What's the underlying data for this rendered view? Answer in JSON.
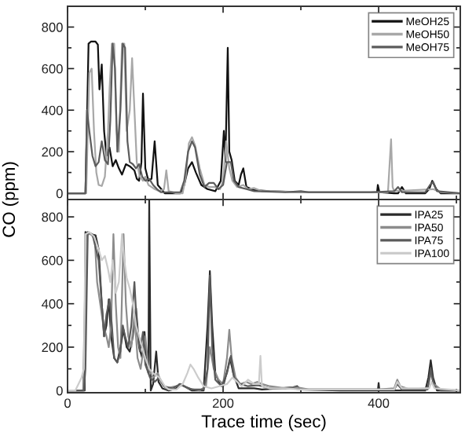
{
  "chart_data": [
    {
      "type": "line",
      "ylabel": "CO (ppm)",
      "xlim": [
        0,
        505
      ],
      "xticks": [
        0,
        {
          "value": 100,
          "label": null
        },
        200,
        {
          "value": 300,
          "label": null
        },
        400,
        {
          "value": 500,
          "label": null
        }
      ],
      "ylim": [
        -30,
        900
      ],
      "yticks": [
        0,
        {
          "value": 100,
          "label": null
        },
        200,
        {
          "value": 300,
          "label": null
        },
        400,
        {
          "value": 500,
          "label": null
        },
        600,
        {
          "value": 700,
          "label": null
        },
        800
      ],
      "tick_labels": "y",
      "legend": "top right",
      "series": [
        {
          "name": "MeOH25",
          "color": "#111111",
          "x": [
            0,
            23,
            25,
            27,
            30,
            36,
            39,
            41,
            44,
            47,
            50,
            54,
            58,
            62,
            66,
            70,
            75,
            80,
            86,
            89,
            92,
            95,
            97,
            100,
            104,
            108,
            112,
            116,
            125,
            145,
            150,
            155,
            160,
            165,
            172,
            180,
            190,
            197,
            201,
            203,
            206,
            208,
            211,
            215,
            220,
            223,
            226,
            230,
            240,
            260,
            300,
            380,
            398,
            399,
            401,
            420,
            425,
            430,
            435,
            460,
            465,
            469,
            474,
            480,
            505
          ],
          "values": [
            0,
            0,
            350,
            720,
            730,
            730,
            715,
            500,
            620,
            300,
            180,
            220,
            130,
            160,
            120,
            90,
            140,
            130,
            110,
            70,
            60,
            150,
            480,
            120,
            60,
            70,
            250,
            40,
            0,
            0,
            40,
            120,
            150,
            100,
            40,
            20,
            10,
            60,
            300,
            150,
            700,
            200,
            160,
            60,
            40,
            90,
            120,
            30,
            15,
            10,
            5,
            5,
            5,
            40,
            5,
            0,
            0,
            30,
            0,
            0,
            20,
            60,
            20,
            0,
            0
          ]
        },
        {
          "name": "MeOH50",
          "color": "#a8a8a8",
          "x": [
            0,
            24,
            26,
            28,
            31,
            34,
            37,
            40,
            44,
            48,
            52,
            54,
            57,
            60,
            63,
            66,
            70,
            73,
            76,
            80,
            83,
            86,
            89,
            93,
            97,
            100,
            104,
            108,
            112,
            118,
            124,
            127,
            130,
            140,
            148,
            152,
            156,
            160,
            164,
            170,
            176,
            182,
            190,
            196,
            200,
            204,
            208,
            212,
            218,
            226,
            232,
            240,
            250,
            270,
            300,
            400,
            412,
            416,
            418,
            420,
            470,
            480,
            505
          ],
          "values": [
            0,
            0,
            300,
            580,
            600,
            300,
            100,
            40,
            35,
            80,
            300,
            500,
            720,
            720,
            300,
            200,
            720,
            720,
            300,
            400,
            650,
            400,
            150,
            80,
            60,
            80,
            40,
            30,
            20,
            10,
            20,
            110,
            10,
            0,
            0,
            80,
            240,
            270,
            230,
            120,
            40,
            30,
            30,
            20,
            60,
            250,
            120,
            60,
            30,
            40,
            20,
            25,
            10,
            10,
            5,
            5,
            5,
            260,
            30,
            10,
            20,
            5,
            0
          ]
        },
        {
          "name": "MeOH75",
          "color": "#5c5c5c",
          "x": [
            0,
            23,
            25,
            28,
            32,
            36,
            40,
            44,
            48,
            52,
            55,
            58,
            61,
            64,
            68,
            71,
            74,
            77,
            80,
            84,
            88,
            92,
            96,
            100,
            105,
            110,
            115,
            120,
            145,
            150,
            155,
            160,
            164,
            170,
            176,
            182,
            188,
            194,
            200,
            205,
            210,
            214,
            220,
            230,
            240,
            280,
            300,
            310,
            390,
            420,
            425,
            430,
            460,
            466,
            470,
            475,
            505
          ],
          "values": [
            0,
            0,
            400,
            300,
            180,
            130,
            150,
            250,
            160,
            140,
            350,
            720,
            600,
            200,
            400,
            720,
            700,
            250,
            150,
            140,
            120,
            140,
            80,
            60,
            70,
            40,
            20,
            5,
            5,
            60,
            200,
            250,
            220,
            90,
            30,
            50,
            50,
            20,
            40,
            150,
            150,
            60,
            30,
            20,
            10,
            5,
            10,
            5,
            5,
            10,
            30,
            5,
            5,
            40,
            55,
            10,
            0
          ]
        }
      ]
    },
    {
      "type": "line",
      "xlabel": "Trace time (sec)",
      "xlim": [
        0,
        505
      ],
      "xticks": [
        0,
        {
          "value": 100,
          "label": null
        },
        200,
        {
          "value": 300,
          "label": null
        },
        400,
        {
          "value": 500,
          "label": null
        }
      ],
      "ylim": [
        -10,
        880
      ],
      "yticks": [
        0,
        {
          "value": 100,
          "label": null
        },
        200,
        {
          "value": 300,
          "label": null
        },
        400,
        {
          "value": 500,
          "label": null
        },
        600,
        {
          "value": 700,
          "label": null
        },
        800
      ],
      "legend": "top right",
      "series": [
        {
          "name": "IPA25",
          "color": "#2a2a2a",
          "x": [
            0,
            22,
            23,
            30,
            36,
            40,
            44,
            47,
            50,
            53,
            56,
            60,
            64,
            68,
            72,
            76,
            80,
            84,
            88,
            92,
            96,
            99,
            102,
            104,
            105,
            107,
            110,
            114,
            117,
            122,
            130,
            140,
            144,
            150,
            160,
            175,
            180,
            183,
            186,
            190,
            196,
            200,
            206,
            209,
            213,
            220,
            240,
            250,
            290,
            295,
            300,
            350,
            399,
            400,
            401,
            460,
            464,
            467,
            470,
            475,
            505
          ],
          "values": [
            0,
            0,
            730,
            720,
            715,
            650,
            400,
            250,
            300,
            420,
            250,
            150,
            130,
            200,
            280,
            200,
            180,
            250,
            380,
            200,
            150,
            270,
            120,
            80,
            880,
            0,
            30,
            180,
            40,
            10,
            0,
            10,
            30,
            20,
            0,
            0,
            300,
            550,
            300,
            80,
            30,
            20,
            100,
            150,
            80,
            10,
            10,
            5,
            15,
            20,
            5,
            0,
            0,
            35,
            0,
            0,
            60,
            140,
            60,
            0,
            0
          ]
        },
        {
          "name": "IPA50",
          "color": "#8c8c8c",
          "x": [
            0,
            20,
            24,
            30,
            35,
            38,
            42,
            46,
            50,
            53,
            56,
            59,
            62,
            65,
            68,
            72,
            75,
            78,
            82,
            86,
            90,
            94,
            100,
            104,
            110,
            116,
            120,
            126,
            140,
            146,
            155,
            170,
            178,
            183,
            188,
            194,
            200,
            205,
            208,
            211,
            216,
            222,
            230,
            236,
            244,
            250,
            260,
            280,
            295,
            310,
            400,
            420,
            424,
            428,
            440,
            463,
            467,
            471,
            480,
            505
          ],
          "values": [
            0,
            0,
            720,
            720,
            700,
            500,
            400,
            300,
            250,
            200,
            300,
            720,
            400,
            200,
            150,
            720,
            400,
            250,
            200,
            350,
            150,
            100,
            250,
            100,
            60,
            80,
            40,
            10,
            20,
            30,
            10,
            0,
            20,
            200,
            100,
            50,
            30,
            150,
            280,
            150,
            60,
            30,
            40,
            30,
            40,
            30,
            20,
            10,
            15,
            5,
            5,
            10,
            50,
            20,
            5,
            10,
            80,
            30,
            5,
            0
          ]
        },
        {
          "name": "IPA75",
          "color": "#5a5a5a",
          "x": [
            0,
            21,
            23,
            26,
            32,
            40,
            44,
            47,
            50,
            54,
            57,
            60,
            64,
            68,
            71,
            74,
            78,
            82,
            86,
            89,
            93,
            97,
            100,
            106,
            112,
            118,
            124,
            135,
            145,
            150,
            160,
            175,
            180,
            183,
            186,
            190,
            198,
            205,
            210,
            214,
            222,
            232,
            245,
            260,
            290,
            300,
            420,
            424,
            430,
            463,
            467,
            471,
            480,
            505
          ],
          "values": [
            0,
            0,
            100,
            730,
            720,
            600,
            400,
            250,
            350,
            420,
            300,
            150,
            130,
            180,
            300,
            250,
            200,
            300,
            500,
            300,
            180,
            270,
            120,
            60,
            40,
            60,
            20,
            10,
            30,
            20,
            5,
            5,
            100,
            530,
            200,
            50,
            20,
            80,
            160,
            60,
            30,
            20,
            25,
            10,
            10,
            5,
            5,
            30,
            5,
            5,
            100,
            20,
            0,
            0
          ]
        },
        {
          "name": "IPA100",
          "color": "#cccccc",
          "x": [
            0,
            10,
            18,
            21,
            23,
            28,
            34,
            40,
            44,
            48,
            52,
            55,
            58,
            62,
            66,
            70,
            73,
            76,
            80,
            84,
            88,
            92,
            96,
            100,
            105,
            110,
            118,
            125,
            130,
            140,
            148,
            154,
            158,
            162,
            168,
            175,
            185,
            195,
            205,
            212,
            218,
            224,
            232,
            240,
            246,
            248,
            250,
            260,
            280,
            300,
            400,
            420,
            424,
            430,
            465,
            468,
            472,
            505
          ],
          "values": [
            0,
            0,
            60,
            100,
            720,
            730,
            710,
            650,
            600,
            620,
            560,
            500,
            600,
            450,
            500,
            720,
            600,
            520,
            470,
            400,
            300,
            250,
            200,
            150,
            100,
            80,
            60,
            20,
            5,
            5,
            30,
            80,
            120,
            100,
            60,
            20,
            10,
            20,
            30,
            60,
            40,
            20,
            50,
            30,
            30,
            160,
            20,
            10,
            10,
            5,
            5,
            5,
            40,
            10,
            10,
            40,
            10,
            0
          ]
        }
      ]
    }
  ]
}
